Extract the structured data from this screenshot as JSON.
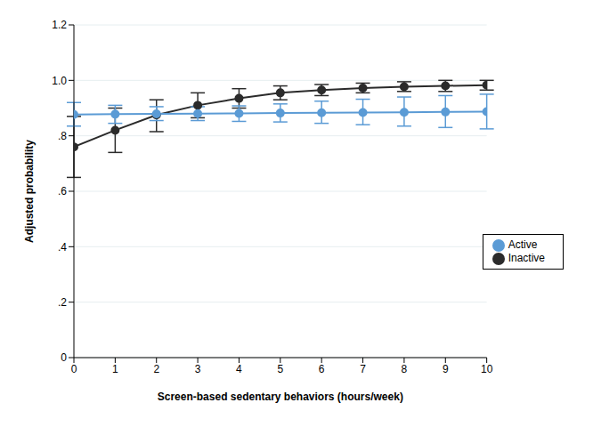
{
  "chart_data": {
    "type": "line",
    "x_label": "Screen-based sedentary behaviors  (hours/week)",
    "y_label": "Adjusted probability",
    "x": [
      0,
      1,
      2,
      3,
      4,
      5,
      6,
      7,
      8,
      9,
      10
    ],
    "series": [
      {
        "name": "Inactive",
        "color": "#2b2b2b",
        "marker": "circle",
        "values": [
          0.76,
          0.82,
          0.875,
          0.91,
          0.935,
          0.955,
          0.965,
          0.972,
          0.977,
          0.98,
          0.983
        ],
        "lower": [
          0.65,
          0.74,
          0.815,
          0.865,
          0.9,
          0.93,
          0.945,
          0.955,
          0.96,
          0.96,
          0.965
        ],
        "upper": [
          0.87,
          0.9,
          0.93,
          0.955,
          0.97,
          0.98,
          0.985,
          0.99,
          0.995,
          1.0,
          1.0
        ]
      },
      {
        "name": "Active",
        "color": "#5b9bd5",
        "marker": "circle",
        "values": [
          0.877,
          0.878,
          0.879,
          0.88,
          0.881,
          0.882,
          0.883,
          0.884,
          0.885,
          0.886,
          0.887
        ],
        "lower": [
          0.835,
          0.845,
          0.855,
          0.855,
          0.852,
          0.85,
          0.845,
          0.84,
          0.835,
          0.83,
          0.825
        ],
        "upper": [
          0.92,
          0.91,
          0.905,
          0.905,
          0.908,
          0.915,
          0.925,
          0.932,
          0.94,
          0.945,
          0.95
        ]
      }
    ],
    "xlim": [
      0,
      10
    ],
    "xticks": [
      0,
      1,
      2,
      3,
      4,
      5,
      6,
      7,
      8,
      9,
      10
    ],
    "ylim": [
      0,
      1.2
    ],
    "yticks": [
      0,
      {
        "value": 0.2,
        "label": ".2"
      },
      {
        "value": 0.4,
        "label": ".4"
      },
      {
        "value": 0.6,
        "label": ".6"
      },
      {
        "value": 0.8,
        "label": ".8"
      },
      {
        "value": 1.0,
        "label": "1.0"
      },
      1.2
    ],
    "grid": true,
    "legend": "right"
  }
}
